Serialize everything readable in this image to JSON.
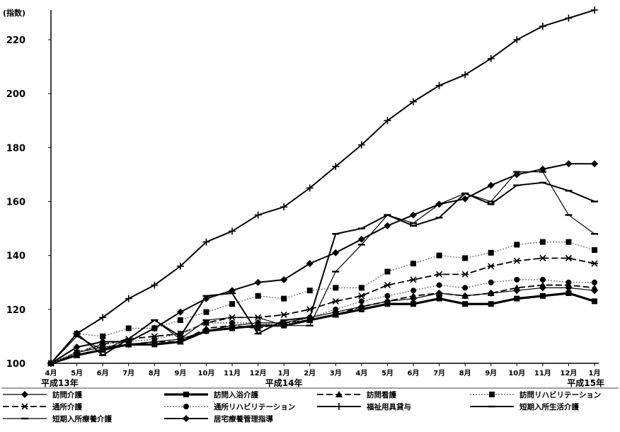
{
  "chart_data": {
    "type": "line",
    "title": "",
    "ylabel": "(指数)",
    "xlabel": "",
    "ylim": [
      100,
      230
    ],
    "yticks": [
      100,
      120,
      140,
      160,
      180,
      200,
      220
    ],
    "categories": [
      "4月",
      "5月",
      "6月",
      "7月",
      "8月",
      "9月",
      "10月",
      "11月",
      "12月",
      "1月",
      "2月",
      "3月",
      "4月",
      "5月",
      "6月",
      "7月",
      "8月",
      "9月",
      "10月",
      "11月",
      "12月",
      "1月"
    ],
    "year_labels": [
      {
        "text": "平成13年",
        "at": 0
      },
      {
        "text": "平成14年",
        "at": 9
      },
      {
        "text": "平成15年",
        "at": 21
      }
    ],
    "grid": false,
    "legend_position": "bottom",
    "series": [
      {
        "name": "訪問介護",
        "marker": "diamond",
        "style": "thin",
        "values": [
          100,
          104,
          106,
          107,
          108,
          109,
          112,
          114,
          115,
          115,
          117,
          119,
          121,
          123,
          124,
          126,
          125,
          126,
          127,
          128,
          128,
          127
        ]
      },
      {
        "name": "訪問入浴介護",
        "marker": "square",
        "style": "thick",
        "values": [
          100,
          103,
          105,
          107,
          107,
          108,
          112,
          113,
          114,
          114,
          116,
          118,
          120,
          122,
          122,
          124,
          122,
          122,
          124,
          125,
          126,
          123
        ]
      },
      {
        "name": "訪問看護",
        "marker": "triangle",
        "style": "dash",
        "values": [
          100,
          103,
          105,
          107,
          108,
          108,
          113,
          114,
          113,
          115,
          116,
          118,
          121,
          123,
          125,
          126,
          125,
          126,
          128,
          129,
          129,
          128
        ]
      },
      {
        "name": "訪問リハビリテーション",
        "marker": "square",
        "style": "dotted",
        "values": [
          100,
          111,
          110,
          113,
          113,
          116,
          119,
          122,
          125,
          124,
          127,
          128,
          128,
          134,
          137,
          140,
          139,
          141,
          144,
          145,
          145,
          142
        ]
      },
      {
        "name": "通所介護",
        "marker": "asterisk",
        "style": "dash",
        "values": [
          100,
          104,
          107,
          109,
          110,
          111,
          115,
          117,
          117,
          118,
          120,
          123,
          125,
          129,
          131,
          133,
          133,
          136,
          138,
          139,
          139,
          137
        ]
      },
      {
        "name": "通所リハビリテーション",
        "marker": "circle",
        "style": "dotted",
        "values": [
          100,
          104,
          107,
          108,
          109,
          111,
          115,
          115,
          115,
          114,
          117,
          120,
          123,
          125,
          127,
          129,
          128,
          130,
          131,
          131,
          130,
          130
        ]
      },
      {
        "name": "福祉用具貸与",
        "marker": "plus",
        "style": "solid",
        "values": [
          100,
          111,
          117,
          124,
          129,
          136,
          145,
          149,
          155,
          158,
          165,
          173,
          181,
          190,
          197,
          203,
          207,
          213,
          220,
          225,
          228,
          231
        ]
      },
      {
        "name": "短期入所生活介護",
        "marker": "dash",
        "style": "solid",
        "values": [
          100,
          111,
          103,
          109,
          116,
          110,
          125,
          126,
          111,
          116,
          117,
          148,
          150,
          155,
          151,
          154,
          163,
          159,
          166,
          167,
          164,
          160
        ]
      },
      {
        "name": "短期入所療養介護",
        "marker": "dash",
        "style": "thin",
        "values": [
          100,
          110,
          105,
          109,
          116,
          109,
          116,
          117,
          117,
          114,
          114,
          134,
          144,
          155,
          152,
          159,
          163,
          160,
          171,
          171,
          155,
          148
        ]
      },
      {
        "name": "居宅療養管理指導",
        "marker": "diamond",
        "style": "solid",
        "values": [
          100,
          106,
          108,
          108,
          113,
          119,
          124,
          127,
          130,
          131,
          137,
          141,
          146,
          151,
          155,
          159,
          161,
          166,
          170,
          172,
          174,
          174
        ]
      }
    ]
  }
}
